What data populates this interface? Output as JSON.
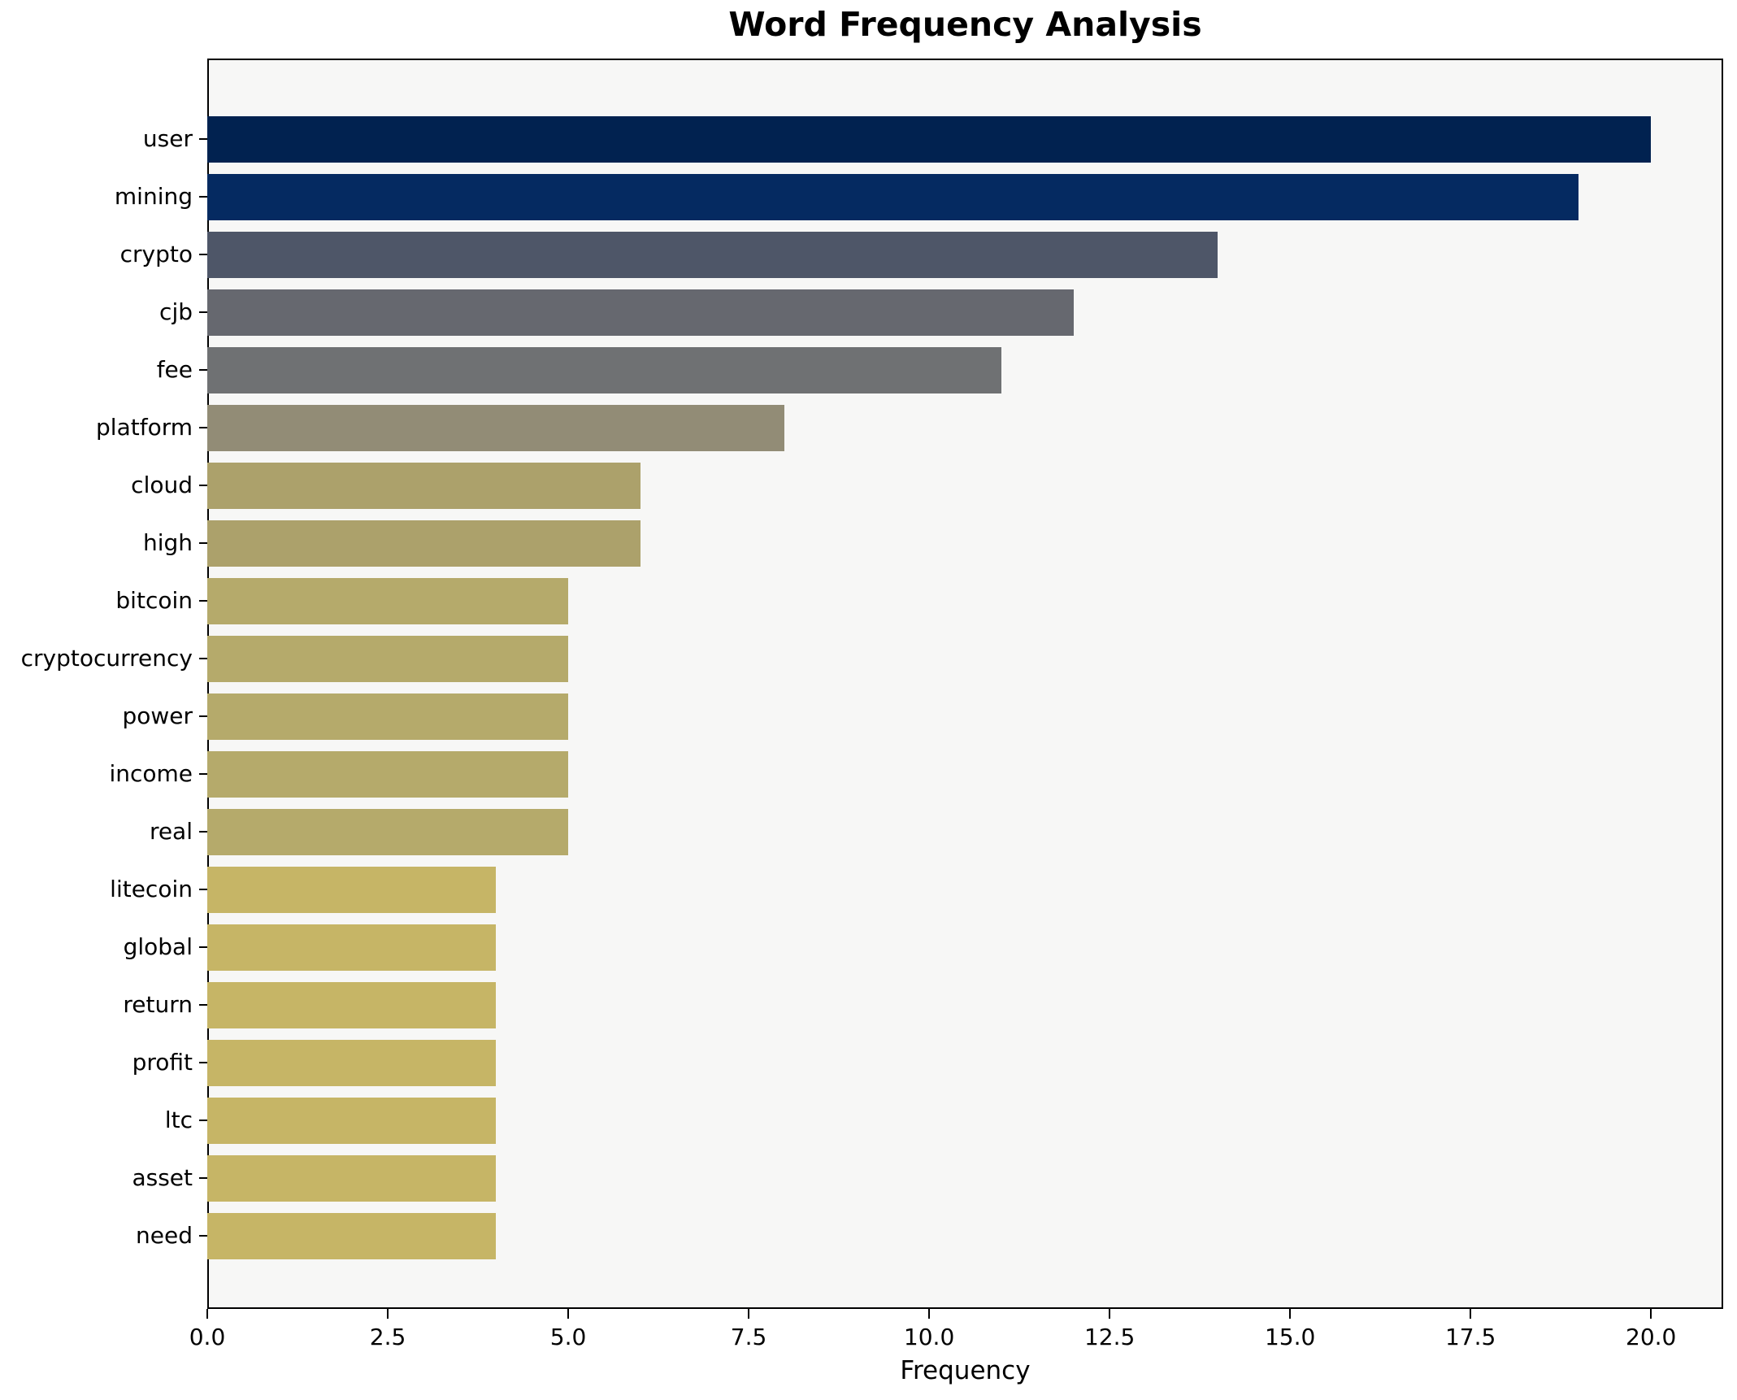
{
  "title": "Word Frequency Analysis",
  "axis": {
    "xlabel": "Frequency"
  },
  "colors": {
    "figure_background": "#ffffff",
    "plot_background": "#f7f7f6",
    "spine": "#000000",
    "text": "#000000"
  },
  "chart_data": {
    "type": "bar",
    "orientation": "horizontal",
    "title": "Word Frequency Analysis",
    "xlabel": "Frequency",
    "ylabel": "",
    "categories": [
      "user",
      "mining",
      "crypto",
      "cjb",
      "fee",
      "platform",
      "cloud",
      "high",
      "bitcoin",
      "cryptocurrency",
      "power",
      "income",
      "real",
      "litecoin",
      "global",
      "return",
      "profit",
      "ltc",
      "asset",
      "need"
    ],
    "values": [
      20,
      19,
      14,
      12,
      11,
      8,
      6,
      6,
      5,
      5,
      5,
      5,
      5,
      4,
      4,
      4,
      4,
      4,
      4,
      4
    ],
    "bar_colors": [
      "#012250",
      "#052a61",
      "#4e5668",
      "#66686f",
      "#6f7173",
      "#928c76",
      "#aca16b",
      "#aca16b",
      "#b5aa6b",
      "#b5aa6b",
      "#b5aa6b",
      "#b5aa6b",
      "#b5aa6b",
      "#c6b566",
      "#c6b566",
      "#c6b566",
      "#c6b566",
      "#c6b566",
      "#c6b566",
      "#c6b566"
    ],
    "xlim": [
      0,
      21
    ],
    "x_ticks": [
      0,
      2.5,
      5,
      7.5,
      10,
      12.5,
      15,
      17.5,
      20
    ],
    "x_tick_labels": [
      "0.0",
      "2.5",
      "5.0",
      "7.5",
      "10.0",
      "12.5",
      "15.0",
      "17.5",
      "20.0"
    ],
    "grid": false,
    "legend": false,
    "bar_height_fraction": 0.8
  }
}
